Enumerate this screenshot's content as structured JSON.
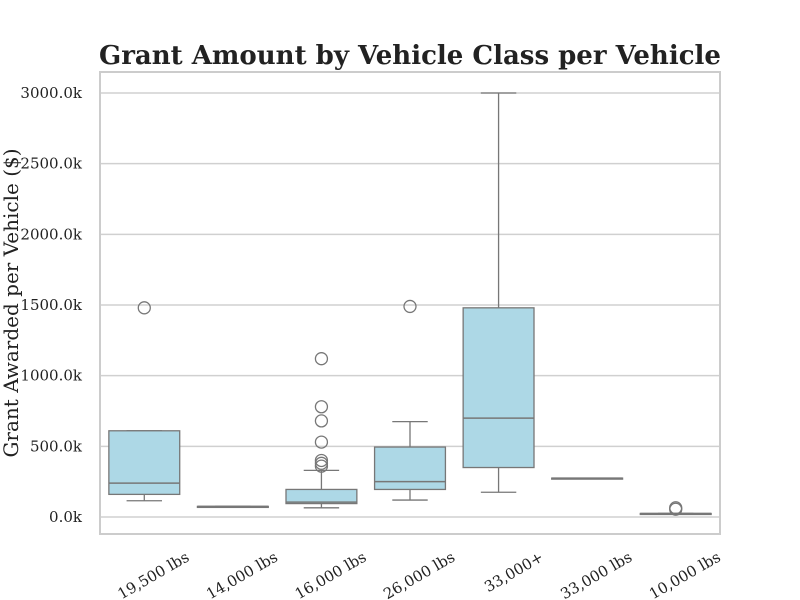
{
  "chart_data": {
    "type": "box",
    "title": "Grant Amount by Vehicle Class per Vehicle",
    "xlabel": "",
    "ylabel": "Grant Awarded per Vehicle ($)",
    "ylim": [
      -150,
      3150
    ],
    "yticks": [
      {
        "value": 0,
        "label": "0.0k"
      },
      {
        "value": 500,
        "label": "500.0k"
      },
      {
        "value": 1000,
        "label": "1000.0k"
      },
      {
        "value": 1500,
        "label": "1500.0k"
      },
      {
        "value": 2000,
        "label": "2000.0k"
      },
      {
        "value": 2500,
        "label": "2500.0k"
      },
      {
        "value": 3000,
        "label": "3000.0k"
      }
    ],
    "grid": true,
    "box_color": "#add8e6",
    "line_color": "#777777",
    "categories": [
      "19,500 lbs",
      "14,000 lbs",
      "16,000 lbs",
      "26,000 lbs",
      "33,000+",
      "33,000 lbs",
      "10,000 lbs"
    ],
    "boxes": [
      {
        "category": "19,500 lbs",
        "whisker_low": 115,
        "q1": 160,
        "median": 240,
        "q3": 610,
        "whisker_high": 610,
        "outliers": [
          1480
        ]
      },
      {
        "category": "14,000 lbs",
        "whisker_low": 75,
        "q1": 75,
        "median": 75,
        "q3": 75,
        "whisker_high": 75,
        "outliers": []
      },
      {
        "category": "16,000 lbs",
        "whisker_low": 65,
        "q1": 95,
        "median": 105,
        "q3": 195,
        "whisker_high": 330,
        "outliers": [
          360,
          380,
          400,
          530,
          680,
          780,
          1120
        ]
      },
      {
        "category": "26,000 lbs",
        "whisker_low": 120,
        "q1": 195,
        "median": 250,
        "q3": 495,
        "whisker_high": 675,
        "outliers": [
          1490
        ]
      },
      {
        "category": "33,000+",
        "whisker_low": 175,
        "q1": 350,
        "median": 700,
        "q3": 1480,
        "whisker_high": 3000,
        "outliers": []
      },
      {
        "category": "33,000 lbs",
        "whisker_low": 275,
        "q1": 275,
        "median": 275,
        "q3": 275,
        "whisker_high": 275,
        "outliers": []
      },
      {
        "category": "10,000 lbs",
        "whisker_low": 25,
        "q1": 25,
        "median": 25,
        "q3": 25,
        "whisker_high": 25,
        "outliers": [
          55,
          65
        ]
      }
    ]
  }
}
